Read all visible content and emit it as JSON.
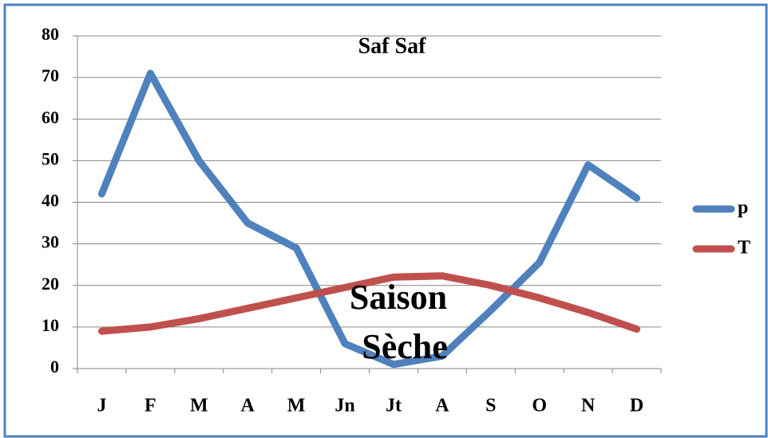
{
  "chart_data": {
    "type": "line",
    "title": "Saf Saf",
    "annotations": [
      "Saison",
      "Sèche"
    ],
    "categories": [
      "J",
      "F",
      "M",
      "A",
      "M",
      "Jn",
      "Jt",
      "A",
      "S",
      "O",
      "N",
      "D"
    ],
    "series": [
      {
        "name": "p",
        "color": "#4f81bd",
        "values": [
          42,
          71,
          50,
          35,
          29,
          6,
          1,
          3,
          14,
          25.5,
          49,
          41
        ]
      },
      {
        "name": "T",
        "color": "#c0504d",
        "values": [
          9,
          10,
          12,
          14.5,
          17,
          19.5,
          22,
          22.3,
          20,
          17,
          13.5,
          9.5
        ]
      }
    ],
    "ylim": [
      0,
      80
    ],
    "yticks": [
      0,
      10,
      20,
      30,
      40,
      50,
      60,
      70,
      80
    ],
    "grid": true,
    "legend": "right"
  }
}
